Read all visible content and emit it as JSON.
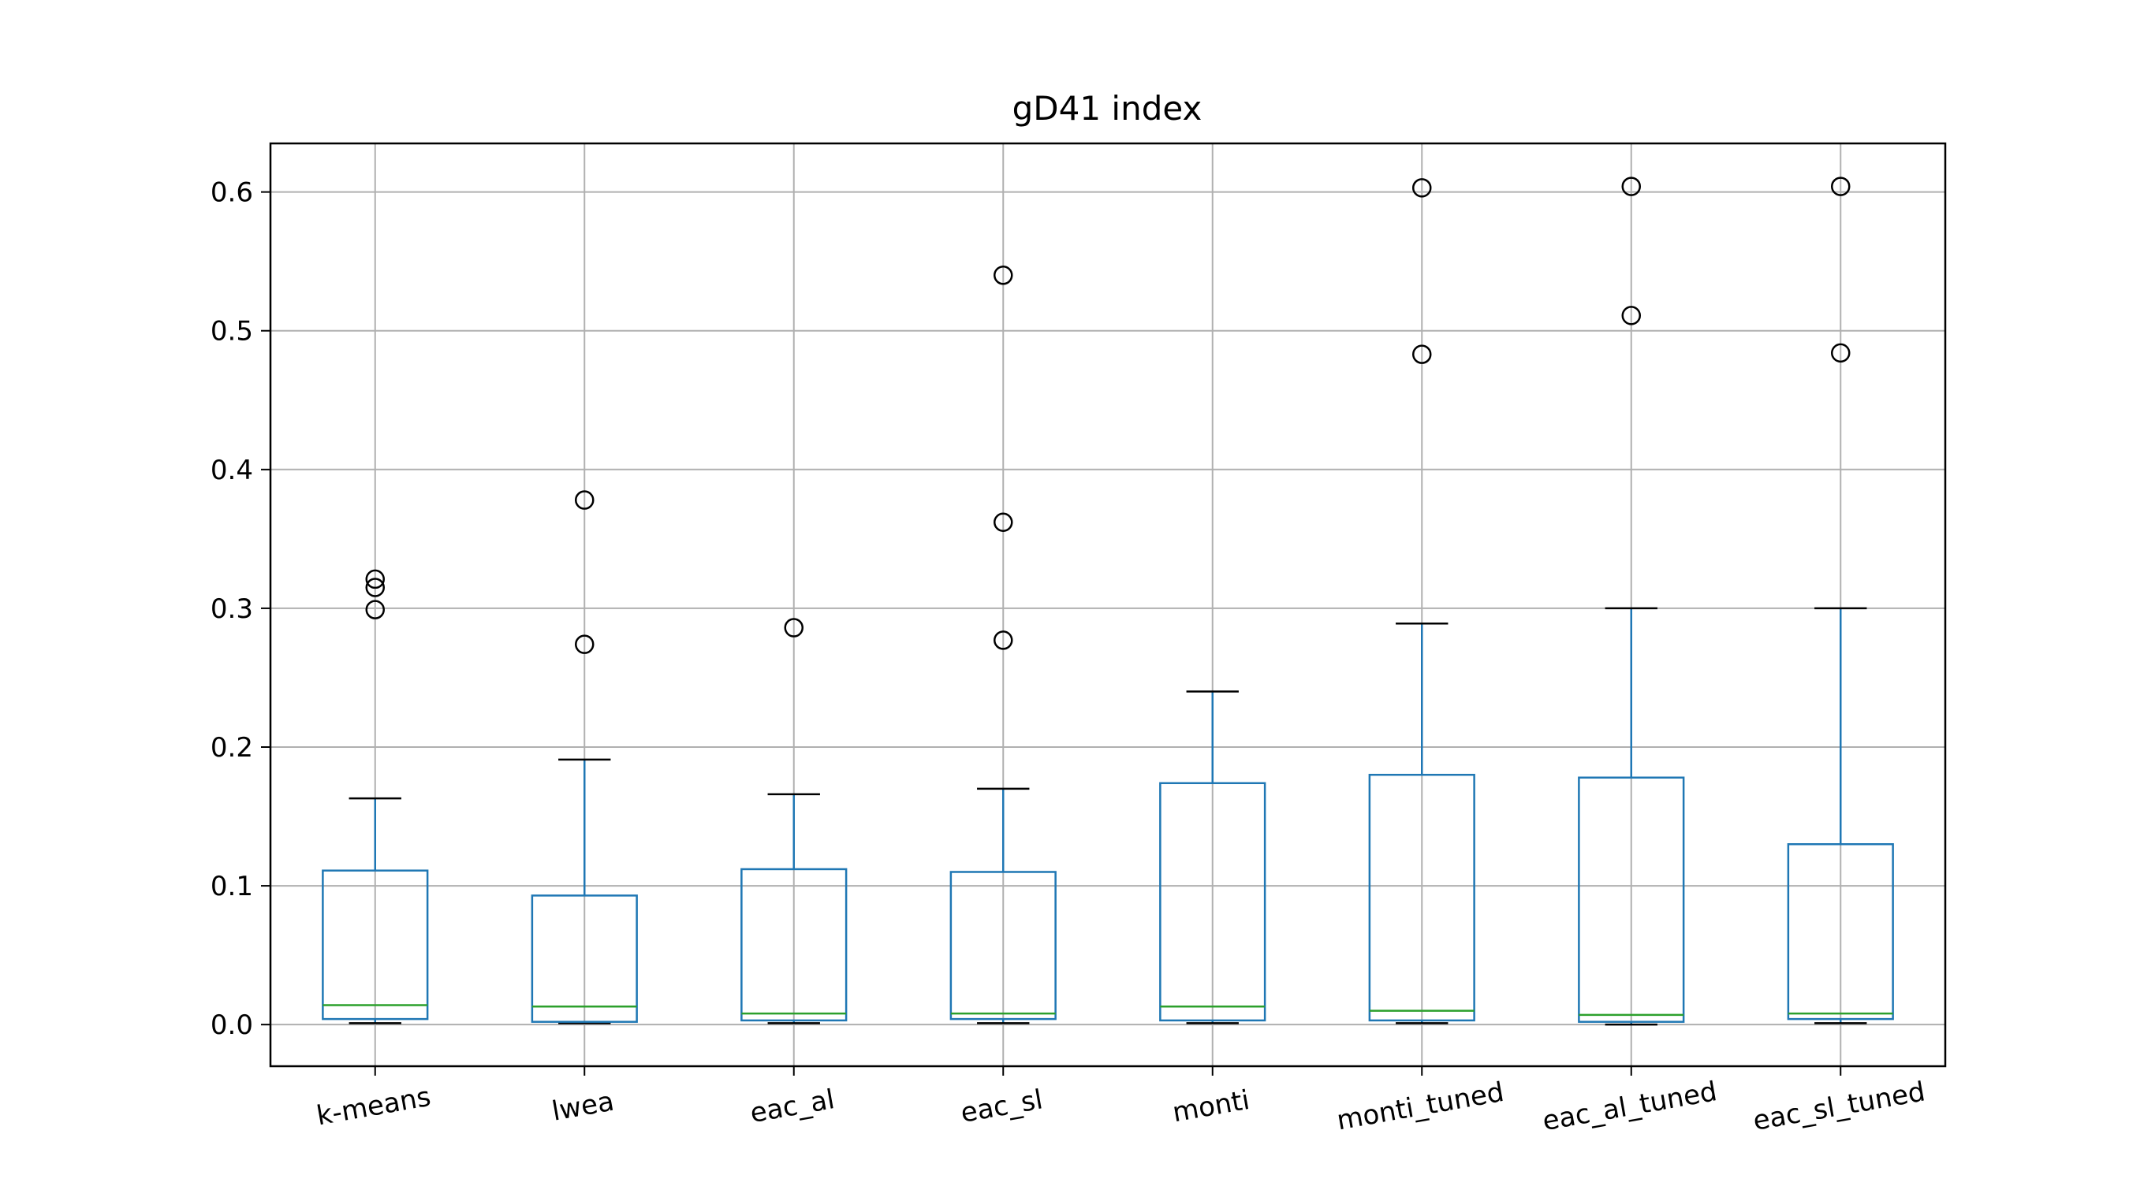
{
  "chart_data": {
    "type": "box",
    "title": "gD41 index",
    "xlabel": "",
    "ylabel": "",
    "ylim": [
      -0.03,
      0.635
    ],
    "yticks": [
      "0.0",
      "0.1",
      "0.2",
      "0.3",
      "0.4",
      "0.5",
      "0.6"
    ],
    "grid": true,
    "legend": "none",
    "colors": {
      "box": "#1f77b4",
      "median": "#2ca02c",
      "whisker_cap": "#000000",
      "outlier": "#000000",
      "grid": "#b0b0b0",
      "axes": "#000000"
    },
    "categories": [
      "k-means",
      "lwea",
      "eac_al",
      "eac_sl",
      "monti",
      "monti_tuned",
      "eac_al_tuned",
      "eac_sl_tuned"
    ],
    "boxes": [
      {
        "q1": 0.004,
        "median": 0.014,
        "q3": 0.111,
        "whislo": 0.001,
        "whishi": 0.163,
        "fliers": [
          0.299,
          0.315,
          0.321
        ]
      },
      {
        "q1": 0.002,
        "median": 0.013,
        "q3": 0.093,
        "whislo": 0.001,
        "whishi": 0.191,
        "fliers": [
          0.274,
          0.378
        ]
      },
      {
        "q1": 0.003,
        "median": 0.008,
        "q3": 0.112,
        "whislo": 0.001,
        "whishi": 0.166,
        "fliers": [
          0.286
        ]
      },
      {
        "q1": 0.004,
        "median": 0.008,
        "q3": 0.11,
        "whislo": 0.001,
        "whishi": 0.17,
        "fliers": [
          0.277,
          0.362,
          0.54
        ]
      },
      {
        "q1": 0.003,
        "median": 0.013,
        "q3": 0.174,
        "whislo": 0.001,
        "whishi": 0.24,
        "fliers": []
      },
      {
        "q1": 0.003,
        "median": 0.01,
        "q3": 0.18,
        "whislo": 0.001,
        "whishi": 0.289,
        "fliers": [
          0.483,
          0.603
        ]
      },
      {
        "q1": 0.002,
        "median": 0.007,
        "q3": 0.178,
        "whislo": 0.0,
        "whishi": 0.3,
        "fliers": [
          0.511,
          0.604
        ]
      },
      {
        "q1": 0.004,
        "median": 0.008,
        "q3": 0.13,
        "whislo": 0.001,
        "whishi": 0.3,
        "fliers": [
          0.484,
          0.604
        ]
      }
    ]
  }
}
